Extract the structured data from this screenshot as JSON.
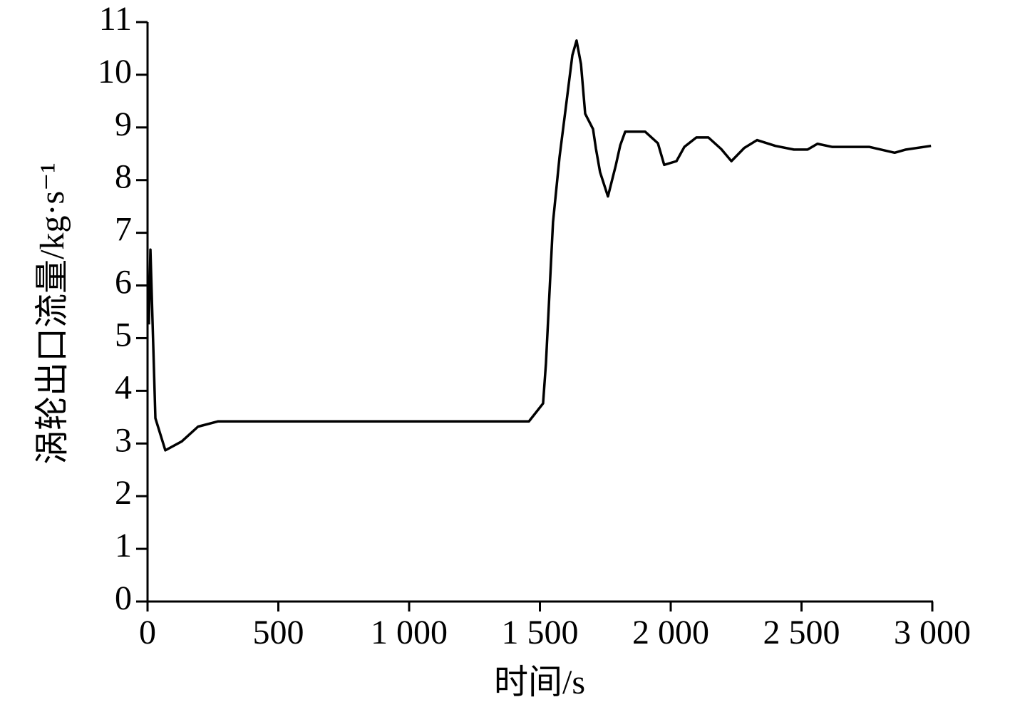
{
  "chart_data": {
    "type": "line",
    "xlabel": "时间/s",
    "ylabel": "涡轮出口流量/kg·s⁻¹",
    "xlim": [
      0,
      3000
    ],
    "xticks": [
      0,
      500,
      {
        "value": 1000,
        "label": "1 000"
      },
      {
        "value": 1500,
        "label": "1 500"
      },
      {
        "value": 2000,
        "label": "2 000"
      },
      {
        "value": 2500,
        "label": "2 500"
      },
      {
        "value": 3000,
        "label": "3 000"
      }
    ],
    "ylim": [
      0,
      11
    ],
    "yticks": [
      0,
      1,
      2,
      3,
      4,
      5,
      6,
      7,
      8,
      9,
      10,
      11
    ],
    "grid": false,
    "series": [
      {
        "color": "#000000",
        "x": [
          5,
          11,
          30,
          68,
          131,
          193,
          270,
          1458,
          1512,
          1523,
          1550,
          1575,
          1600,
          1624,
          1640,
          1657,
          1673,
          1703,
          1714,
          1730,
          1760,
          1790,
          1807,
          1826,
          1902,
          1951,
          1975,
          2022,
          2052,
          2098,
          2144,
          2193,
          2232,
          2281,
          2330,
          2400,
          2471,
          2523,
          2561,
          2618,
          2760,
          2856,
          2899,
          2995
        ],
        "values": [
          5.26,
          6.68,
          3.48,
          2.87,
          3.04,
          3.32,
          3.42,
          3.42,
          3.76,
          4.52,
          7.2,
          8.44,
          9.42,
          10.37,
          10.65,
          10.2,
          9.26,
          8.97,
          8.6,
          8.15,
          7.69,
          8.28,
          8.66,
          8.92,
          8.92,
          8.7,
          8.29,
          8.36,
          8.63,
          8.81,
          8.81,
          8.59,
          8.36,
          8.61,
          8.76,
          8.65,
          8.58,
          8.58,
          8.69,
          8.63,
          8.63,
          8.52,
          8.58,
          8.65
        ]
      }
    ]
  }
}
